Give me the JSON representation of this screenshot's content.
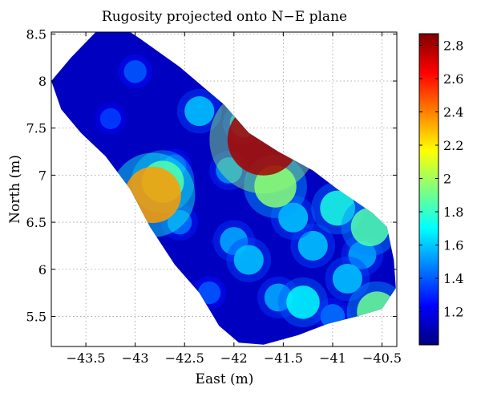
{
  "chart_data": {
    "type": "heatmap",
    "title": "Rugosity projected onto N−E plane",
    "xlabel": "East (m)",
    "ylabel": "North (m)",
    "xlim": [
      -43.85,
      -40.35
    ],
    "ylim": [
      5.18,
      8.52
    ],
    "xticks": [
      -43.5,
      -43,
      -42.5,
      -42,
      -41.5,
      -41,
      -40.5
    ],
    "xtick_labels": [
      "−43.5",
      "−43",
      "−42.5",
      "−42",
      "−41.5",
      "−41",
      "−40.5"
    ],
    "yticks": [
      5.5,
      6,
      6.5,
      7,
      7.5,
      8,
      8.5
    ],
    "ytick_labels": [
      "5.5",
      "6",
      "6.5",
      "7",
      "7.5",
      "8",
      "8.5"
    ],
    "grid": true,
    "colorbar": {
      "colormap": "jet",
      "min": 1.0,
      "max": 2.87,
      "ticks": [
        1.2,
        1.4,
        1.6,
        1.8,
        2,
        2.2,
        2.4,
        2.6,
        2.8
      ],
      "tick_labels": [
        "1.2",
        "1.4",
        "1.6",
        "1.8",
        "2",
        "2.2",
        "2.4",
        "2.6",
        "2.8"
      ]
    },
    "region_outline": [
      [
        -43.4,
        8.52
      ],
      [
        -43.05,
        8.52
      ],
      [
        -42.95,
        8.45
      ],
      [
        -42.55,
        8.15
      ],
      [
        -42.1,
        7.75
      ],
      [
        -41.85,
        7.45
      ],
      [
        -41.55,
        7.25
      ],
      [
        -41.2,
        7.05
      ],
      [
        -40.95,
        6.85
      ],
      [
        -40.6,
        6.6
      ],
      [
        -40.45,
        6.45
      ],
      [
        -40.38,
        6.1
      ],
      [
        -40.36,
        5.8
      ],
      [
        -40.5,
        5.58
      ],
      [
        -40.75,
        5.5
      ],
      [
        -41.05,
        5.42
      ],
      [
        -41.35,
        5.3
      ],
      [
        -41.7,
        5.2
      ],
      [
        -41.95,
        5.22
      ],
      [
        -42.15,
        5.4
      ],
      [
        -42.35,
        5.75
      ],
      [
        -42.6,
        6.05
      ],
      [
        -42.85,
        6.45
      ],
      [
        -43.05,
        6.85
      ],
      [
        -43.3,
        7.2
      ],
      [
        -43.55,
        7.45
      ],
      [
        -43.75,
        7.7
      ],
      [
        -43.85,
        8.0
      ],
      [
        -43.65,
        8.25
      ]
    ],
    "background_value": 1.12,
    "features": [
      {
        "x": -41.7,
        "y": 7.38,
        "value": 2.8
      },
      {
        "x": -42.82,
        "y": 6.79,
        "value": 2.35
      },
      {
        "x": -42.72,
        "y": 6.93,
        "value": 1.95
      },
      {
        "x": -41.58,
        "y": 6.88,
        "value": 1.95
      },
      {
        "x": -40.95,
        "y": 6.65,
        "value": 1.75
      },
      {
        "x": -40.62,
        "y": 6.45,
        "value": 1.85
      },
      {
        "x": -40.55,
        "y": 5.55,
        "value": 1.9
      },
      {
        "x": -42.35,
        "y": 7.68,
        "value": 1.6
      },
      {
        "x": -41.9,
        "y": 7.55,
        "value": 1.55
      },
      {
        "x": -43.0,
        "y": 8.1,
        "value": 1.4
      },
      {
        "x": -42.05,
        "y": 7.05,
        "value": 1.5
      },
      {
        "x": -42.0,
        "y": 6.3,
        "value": 1.55
      },
      {
        "x": -41.85,
        "y": 6.1,
        "value": 1.6
      },
      {
        "x": -41.55,
        "y": 5.7,
        "value": 1.55
      },
      {
        "x": -41.3,
        "y": 5.65,
        "value": 1.7
      },
      {
        "x": -41.2,
        "y": 6.25,
        "value": 1.6
      },
      {
        "x": -40.85,
        "y": 5.9,
        "value": 1.6
      },
      {
        "x": -40.7,
        "y": 6.15,
        "value": 1.55
      },
      {
        "x": -42.55,
        "y": 6.5,
        "value": 1.45
      },
      {
        "x": -43.25,
        "y": 7.6,
        "value": 1.35
      },
      {
        "x": -41.4,
        "y": 6.55,
        "value": 1.6
      },
      {
        "x": -41.0,
        "y": 5.5,
        "value": 1.45
      },
      {
        "x": -42.25,
        "y": 5.75,
        "value": 1.4
      },
      {
        "x": -42.6,
        "y": 7.1,
        "value": 1.4
      }
    ]
  }
}
